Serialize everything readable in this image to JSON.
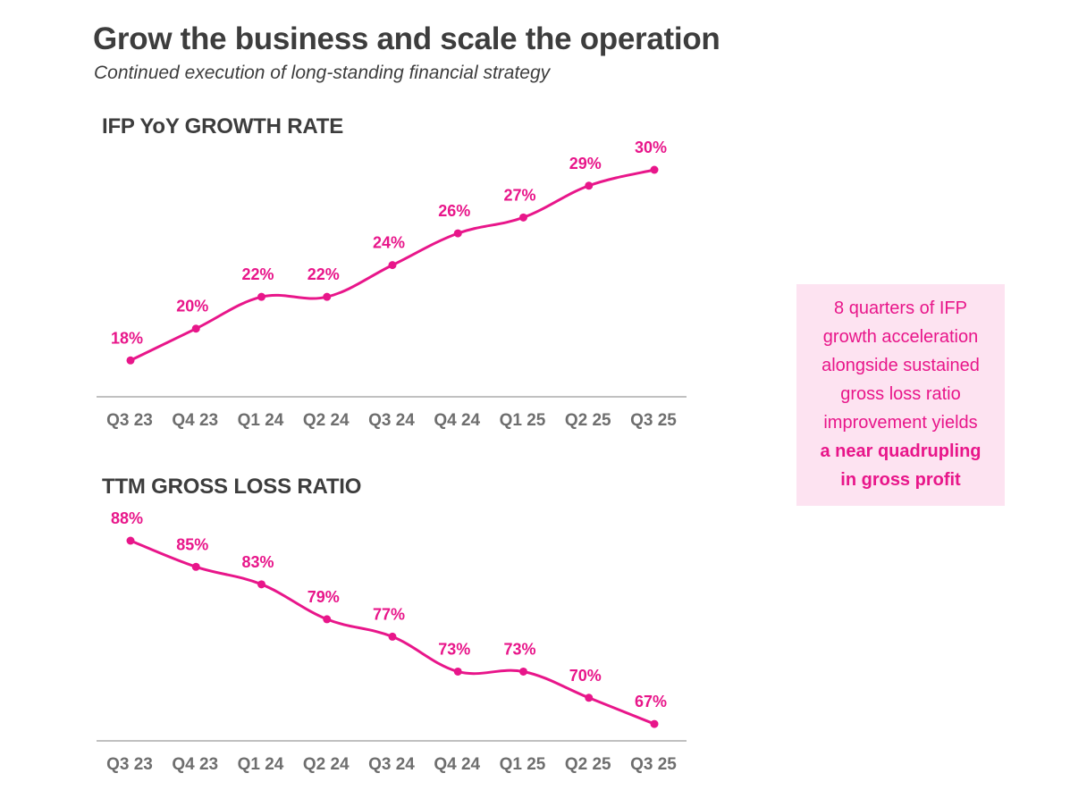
{
  "header": {
    "title": "Grow the business and scale the operation",
    "subtitle": "Continued execution of long-standing financial strategy"
  },
  "colors": {
    "accent": "#e8168a",
    "text": "#3d3d3d",
    "axis_label": "#6e6e6e",
    "callout_bg": "#fde3f1"
  },
  "callout": {
    "line1": "8 quarters of IFP",
    "line2": "growth acceleration",
    "line3": "alongside sustained",
    "line4": "gross loss ratio",
    "line5": "improvement yields",
    "bold1": "a near quadrupling",
    "bold2": "in  gross profit"
  },
  "chart_data": [
    {
      "type": "line",
      "title": "IFP YoY GROWTH RATE",
      "categories": [
        "Q3 23",
        "Q4 23",
        "Q1 24",
        "Q2 24",
        "Q3 24",
        "Q4 24",
        "Q1 25",
        "Q2 25",
        "Q3 25"
      ],
      "values": [
        18,
        20,
        22,
        22,
        24,
        26,
        27,
        29,
        30
      ],
      "labels": [
        "18%",
        "20%",
        "22%",
        "22%",
        "24%",
        "26%",
        "27%",
        "29%",
        "30%"
      ],
      "unit": "%",
      "ylim": [
        16,
        30
      ],
      "grid": false,
      "legend": "none"
    },
    {
      "type": "line",
      "title": "TTM GROSS LOSS RATIO",
      "categories": [
        "Q3 23",
        "Q4 23",
        "Q1 24",
        "Q2 24",
        "Q3 24",
        "Q4 24",
        "Q1 25",
        "Q2 25",
        "Q3 25"
      ],
      "values": [
        88,
        85,
        83,
        79,
        77,
        73,
        73,
        70,
        67
      ],
      "labels": [
        "88%",
        "85%",
        "83%",
        "79%",
        "77%",
        "73%",
        "73%",
        "70%",
        "67%"
      ],
      "unit": "%",
      "ylim": [
        65,
        88
      ],
      "grid": false,
      "legend": "none"
    }
  ]
}
